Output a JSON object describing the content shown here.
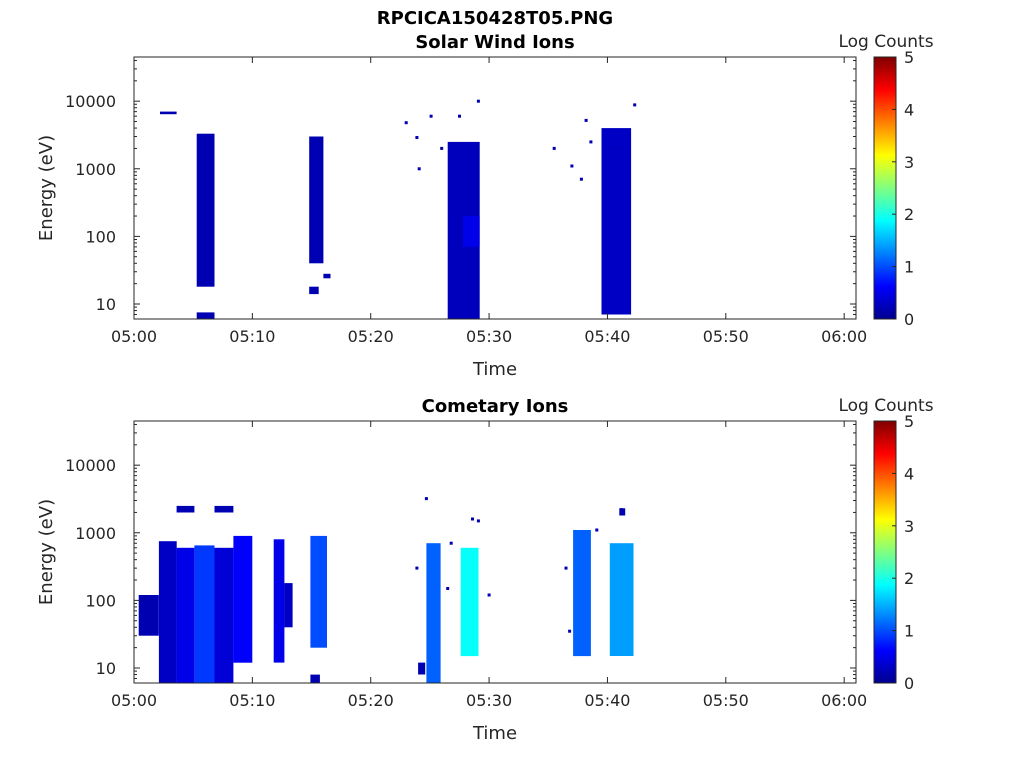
{
  "figure_title": "RPCICA150428T05.PNG",
  "colorbar_label": "Log Counts",
  "colormap": [
    "#00008f",
    "#0000ff",
    "#0080ff",
    "#00ffff",
    "#80ff80",
    "#ffff00",
    "#ff8000",
    "#ff0000",
    "#800000"
  ],
  "chart_data": [
    {
      "type": "heatmap",
      "title": "Solar Wind Ions",
      "xlabel": "Time",
      "ylabel": "Energy (eV)",
      "x_range": [
        "05:00",
        "06:01"
      ],
      "y_range": [
        6,
        45000
      ],
      "y_scale": "log",
      "xticks": [
        "05:00",
        "05:10",
        "05:20",
        "05:30",
        "05:40",
        "05:50",
        "06:00"
      ],
      "yticks": [
        "10",
        "100",
        "1000",
        "10000"
      ],
      "colorbar": {
        "label": "Log Counts",
        "range": [
          0,
          5
        ],
        "ticks": [
          "0",
          "1",
          "2",
          "3",
          "4",
          "5"
        ]
      },
      "cells": [
        {
          "t0": "05:02.2",
          "t1": "05:03.6",
          "e0": 6400,
          "e1": 7000,
          "v": 0.2
        },
        {
          "t0": "05:05.3",
          "t1": "05:06.8",
          "e0": 18,
          "e1": 3300,
          "v": 0.2
        },
        {
          "t0": "05:05.3",
          "t1": "05:06.8",
          "e0": 6,
          "e1": 7.5,
          "v": 0.2
        },
        {
          "t0": "05:14.8",
          "t1": "05:16.0",
          "e0": 40,
          "e1": 3000,
          "v": 0.2
        },
        {
          "t0": "05:14.8",
          "t1": "05:15.6",
          "e0": 14,
          "e1": 18,
          "v": 0.2
        },
        {
          "t0": "05:16.0",
          "t1": "05:16.6",
          "e0": 24,
          "e1": 28,
          "v": 0.2
        },
        {
          "t0": "05:26.5",
          "t1": "05:29.2",
          "e0": 6,
          "e1": 2500,
          "v": 0.25
        },
        {
          "t0": "05:39.5",
          "t1": "05:42.0",
          "e0": 7,
          "e1": 4000,
          "v": 0.3
        },
        {
          "t0": "05:27.8",
          "t1": "05:29.2",
          "e0": 70,
          "e1": 200,
          "v": 0.5
        }
      ],
      "scatter_points": [
        {
          "t": "05:23.0",
          "e": 4800
        },
        {
          "t": "05:23.9",
          "e": 2900
        },
        {
          "t": "05:25.1",
          "e": 6000
        },
        {
          "t": "05:26.0",
          "e": 2000
        },
        {
          "t": "05:27.5",
          "e": 6000
        },
        {
          "t": "05:29.1",
          "e": 10000
        },
        {
          "t": "05:35.5",
          "e": 2000
        },
        {
          "t": "05:37.0",
          "e": 1100
        },
        {
          "t": "05:37.8",
          "e": 700
        },
        {
          "t": "05:38.2",
          "e": 5200
        },
        {
          "t": "05:40.5",
          "e": 2000
        },
        {
          "t": "05:42.3",
          "e": 8800
        },
        {
          "t": "05:24.1",
          "e": 1000
        },
        {
          "t": "05:38.6",
          "e": 2500
        }
      ]
    },
    {
      "type": "heatmap",
      "title": "Cometary Ions",
      "xlabel": "Time",
      "ylabel": "Energy (eV)",
      "x_range": [
        "05:00",
        "06:01"
      ],
      "y_range": [
        6,
        45000
      ],
      "y_scale": "log",
      "xticks": [
        "05:00",
        "05:10",
        "05:20",
        "05:30",
        "05:40",
        "05:50",
        "06:00"
      ],
      "yticks": [
        "10",
        "100",
        "1000",
        "10000"
      ],
      "colorbar": {
        "label": "Log Counts",
        "range": [
          0,
          5
        ],
        "ticks": [
          "0",
          "1",
          "2",
          "3",
          "4",
          "5"
        ]
      },
      "cells": [
        {
          "t0": "05:02.1",
          "t1": "05:03.6",
          "e0": 6,
          "e1": 750,
          "v": 0.3
        },
        {
          "t0": "05:03.6",
          "t1": "05:05.1",
          "e0": 6,
          "e1": 600,
          "v": 0.5
        },
        {
          "t0": "05:05.1",
          "t1": "05:06.8",
          "e0": 6,
          "e1": 650,
          "v": 0.9
        },
        {
          "t0": "05:06.8",
          "t1": "05:08.4",
          "e0": 6,
          "e1": 600,
          "v": 0.4
        },
        {
          "t0": "05:08.4",
          "t1": "05:10.0",
          "e0": 12,
          "e1": 900,
          "v": 0.6
        },
        {
          "t0": "05:11.8",
          "t1": "05:12.7",
          "e0": 12,
          "e1": 800,
          "v": 0.5
        },
        {
          "t0": "05:12.7",
          "t1": "05:13.4",
          "e0": 40,
          "e1": 180,
          "v": 0.3
        },
        {
          "t0": "05:14.9",
          "t1": "05:16.3",
          "e0": 20,
          "e1": 900,
          "v": 1.0
        },
        {
          "t0": "05:14.9",
          "t1": "05:15.7",
          "e0": 6,
          "e1": 8,
          "v": 0.2
        },
        {
          "t0": "05:03.6",
          "t1": "05:05.1",
          "e0": 2000,
          "e1": 2500,
          "v": 0.2
        },
        {
          "t0": "05:06.8",
          "t1": "05:08.4",
          "e0": 2000,
          "e1": 2500,
          "v": 0.2
        },
        {
          "t0": "05:00.4",
          "t1": "05:02.1",
          "e0": 30,
          "e1": 120,
          "v": 0.2
        },
        {
          "t0": "05:24.7",
          "t1": "05:25.9",
          "e0": 6,
          "e1": 700,
          "v": 1.1
        },
        {
          "t0": "05:27.6",
          "t1": "05:29.1",
          "e0": 15,
          "e1": 600,
          "v": 1.9
        },
        {
          "t0": "05:37.1",
          "t1": "05:38.6",
          "e0": 15,
          "e1": 1100,
          "v": 1.1
        },
        {
          "t0": "05:40.2",
          "t1": "05:42.2",
          "e0": 15,
          "e1": 700,
          "v": 1.4
        },
        {
          "t0": "05:24.0",
          "t1": "05:24.6",
          "e0": 8,
          "e1": 12,
          "v": 0.2
        },
        {
          "t0": "05:41.0",
          "t1": "05:41.5",
          "e0": 1800,
          "e1": 2300,
          "v": 0.2
        }
      ],
      "scatter_points": [
        {
          "t": "05:24.7",
          "e": 3200
        },
        {
          "t": "05:26.8",
          "e": 700
        },
        {
          "t": "05:28.6",
          "e": 1600
        },
        {
          "t": "05:29.1",
          "e": 1500
        },
        {
          "t": "05:36.5",
          "e": 300
        },
        {
          "t": "05:36.8",
          "e": 35
        },
        {
          "t": "05:39.1",
          "e": 1100
        },
        {
          "t": "05:41.2",
          "e": 2200
        },
        {
          "t": "05:23.9",
          "e": 300
        },
        {
          "t": "05:26.5",
          "e": 150
        },
        {
          "t": "05:30.0",
          "e": 120
        }
      ]
    }
  ]
}
